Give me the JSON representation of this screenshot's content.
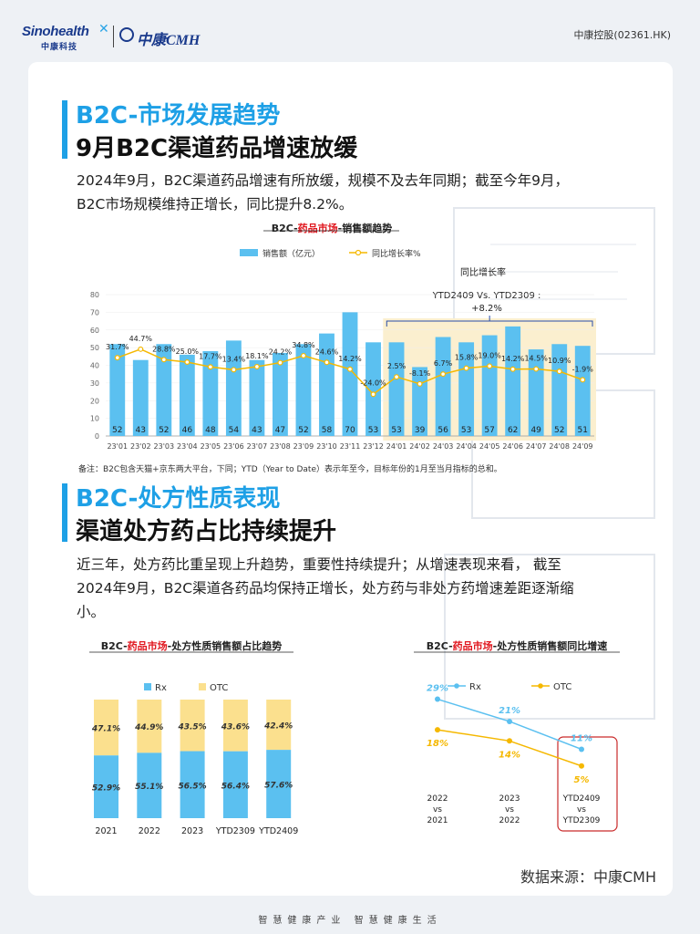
{
  "header": {
    "logo_sino": "Sinohealth",
    "logo_sino_cn": "中康科技",
    "logo_cmh": "中康CMH",
    "ticker": "中康控股(02361.HK)"
  },
  "section1": {
    "title_main": "B2C-市场发展趋势",
    "title_sub": "9月B2C渠道药品增速放缓",
    "para_line1": "2024年9月，B2C渠道药品增速有所放缓，规模不及去年同期；截至今年9月，",
    "para_line2": "B2C市场规模维持正增长，同比提升8.2%。"
  },
  "section2": {
    "title_main": "B2C-处方性质表现",
    "title_sub": "渠道处方药占比持续提升",
    "para_line1": "近三年，处方药比重呈现上升趋势，重要性持续提升；从增速表现来看，  截至",
    "para_line2": "2024年9月，B2C渠道各药品均保持正增长，处方药与非处方药增速差距逐渐缩",
    "para_line3": "小。"
  },
  "note": "备注：B2C包含天猫+京东两大平台，下同；YTD（Year to Date）表示年至今，目标年份的1月至当月指标的总和。",
  "source": "数据来源：中康CMH",
  "footer": "智慧健康产业  智慧健康生活",
  "chart_data": [
    {
      "type": "bar",
      "title_prefix": "B2C-",
      "title_highlight": "药品市场",
      "title_suffix": "-销售额趋势",
      "legend_bar": "销售额（亿元）",
      "legend_line": "同比增长率%",
      "annotation_title": "同比增长率",
      "annotation_line1": "YTD2409 Vs. YTD2309 :",
      "annotation_line2": "+8.2%",
      "categories": [
        "23'01",
        "23'02",
        "23'03",
        "23'04",
        "23'05",
        "23'06",
        "23'07",
        "23'08",
        "23'09",
        "23'10",
        "23'11",
        "23'12",
        "24'01",
        "24'02",
        "24'03",
        "24'04",
        "24'05",
        "24'06",
        "24'07",
        "24'08",
        "24'09"
      ],
      "values": [
        52,
        43,
        52,
        46,
        48,
        54,
        43,
        47,
        52,
        58,
        70,
        53,
        53,
        39,
        56,
        53,
        57,
        62,
        49,
        52,
        51
      ],
      "growth": [
        31.7,
        44.7,
        28.8,
        25.0,
        17.7,
        13.4,
        18.1,
        24.2,
        34.8,
        24.6,
        14.2,
        -24.0,
        2.5,
        -8.1,
        6.7,
        15.8,
        19.0,
        14.2,
        14.5,
        10.9,
        -1.9
      ],
      "growth_labels": [
        "31.7%",
        "44.7%",
        "28.8%",
        "25.0%",
        "17.7%",
        "13.4%",
        "18.1%",
        "24.2%",
        "34.8%",
        "24.6%",
        "14.2%",
        "-24.0%",
        "2.5%",
        "-8.1%",
        "6.7%",
        "15.8%",
        "19.0%",
        "14.2%",
        "14.5%",
        "10.9%",
        "-1.9%"
      ],
      "yticks": [
        "0",
        "10",
        "20",
        "30",
        "40",
        "50",
        "60",
        "70",
        "80"
      ],
      "ylim": [
        0,
        80
      ],
      "colors": {
        "bar": "#5bc0f0",
        "line": "#f5b800",
        "highlight": "#fbefcf",
        "title_red": "#e0161e"
      }
    },
    {
      "type": "bar",
      "stacked": true,
      "title_prefix": "B2C-",
      "title_highlight": "药品市场",
      "title_suffix": "-处方性质销售额占比趋势",
      "categories": [
        "2021",
        "2022",
        "2023",
        "YTD2309",
        "YTD2409"
      ],
      "series": [
        {
          "name": "Rx",
          "values": [
            52.9,
            55.1,
            56.5,
            56.4,
            57.6
          ],
          "labels": [
            "52.9%",
            "55.1%",
            "56.5%",
            "56.4%",
            "57.6%"
          ],
          "color": "#5bc0f0"
        },
        {
          "name": "OTC",
          "values": [
            47.1,
            44.9,
            43.5,
            43.6,
            42.4
          ],
          "labels": [
            "47.1%",
            "44.9%",
            "43.5%",
            "43.6%",
            "42.4%"
          ],
          "color": "#fbe08e"
        }
      ],
      "ylim": [
        0,
        100
      ]
    },
    {
      "type": "line",
      "title_prefix": "B2C-",
      "title_highlight": "药品市场",
      "title_suffix": "-处方性质销售额同比增速",
      "categories": [
        [
          "2022",
          "vs",
          "2021"
        ],
        [
          "2023",
          "vs",
          "2022"
        ],
        [
          "YTD2409",
          "vs",
          "YTD2309"
        ]
      ],
      "series": [
        {
          "name": "Rx",
          "values": [
            29,
            21,
            11
          ],
          "labels": [
            "29%",
            "21%",
            "11%"
          ],
          "color": "#5bc0f0"
        },
        {
          "name": "OTC",
          "values": [
            18,
            14,
            5
          ],
          "labels": [
            "18%",
            "14%",
            "5%"
          ],
          "color": "#f5b800"
        }
      ],
      "ylim": [
        0,
        35
      ]
    }
  ]
}
